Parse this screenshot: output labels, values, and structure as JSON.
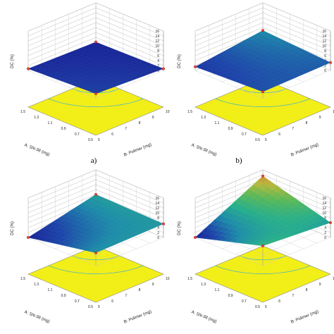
{
  "panel_labels": [
    "a)",
    "b)"
  ],
  "chart_data": [
    {
      "type": "surface",
      "panel": "a)",
      "zlabel": "DC (%)",
      "xlabel": "A: SN-38 (mg)",
      "ylabel": "B: Polimer (mg)",
      "zlim": [
        0,
        16
      ],
      "z_ticks": [
        "0",
        "2",
        "4",
        "6",
        "8",
        "10",
        "12",
        "14",
        "16"
      ],
      "x_ticks": [
        "0.5",
        "0.7",
        "0.9",
        "1.1",
        "1.3",
        "1.5"
      ],
      "y_ticks": [
        "5",
        "6",
        "7",
        "8",
        "9",
        "10"
      ],
      "surface_corners": {
        "xmin_ymin": 2.0,
        "xmax_ymin": 0.7,
        "xmin_ymax": 0.7,
        "xmax_ymax": 0.1
      },
      "colormap": "blue-green-red"
    },
    {
      "type": "surface",
      "panel": "b)",
      "zlabel": "DC (%)",
      "xlabel": "A: SN-38 (mg)",
      "ylabel": "B: Polimer (mg)",
      "zlim": [
        0,
        16
      ],
      "z_ticks": [
        "0",
        "2",
        "4",
        "6",
        "8",
        "10",
        "12",
        "14",
        "16"
      ],
      "x_ticks": [
        "0.5",
        "0.7",
        "0.9",
        "1.1",
        "1.3",
        "1.5"
      ],
      "y_ticks": [
        "5",
        "6",
        "7",
        "8",
        "9",
        "10"
      ],
      "surface_corners": {
        "xmin_ymin": 2.8,
        "xmax_ymin": 1.5,
        "xmin_ymax": 3.2,
        "xmax_ymax": 4.8
      },
      "colormap": "blue-green-red"
    },
    {
      "type": "surface",
      "panel": "",
      "zlabel": "DC (%)",
      "xlabel": "A: SN-38 (mg)",
      "ylabel": "B: Polimer (mg)",
      "zlim": [
        0,
        16
      ],
      "z_ticks": [
        "0",
        "2",
        "4",
        "6",
        "8",
        "10",
        "12",
        "14",
        "16"
      ],
      "x_ticks": [
        "0.5",
        "0.7",
        "0.9",
        "1.1",
        "1.3",
        "1.5"
      ],
      "y_ticks": [
        "5",
        "6",
        "7",
        "8",
        "9",
        "10"
      ],
      "surface_corners": {
        "xmin_ymin": 5.2,
        "xmax_ymin": 0.0,
        "xmin_ymax": 5.5,
        "xmax_ymax": 6.0
      },
      "colormap": "blue-green-red"
    },
    {
      "type": "surface",
      "panel": "",
      "zlabel": "DC (%)",
      "xlabel": "A: SN-38 (mg)",
      "ylabel": "B: Polimer (mg)",
      "zlim": [
        0,
        16
      ],
      "z_ticks": [
        "0",
        "2",
        "4",
        "6",
        "8",
        "10",
        "12",
        "14",
        "16"
      ],
      "x_ticks": [
        "0.5",
        "0.7",
        "0.9",
        "1.1",
        "1.3",
        "1.5"
      ],
      "y_ticks": [
        "5",
        "6",
        "7",
        "8",
        "9",
        "10"
      ],
      "surface_corners": {
        "xmin_ymin": 8.0,
        "xmax_ymin": 0.0,
        "xmin_ymax": 6.0,
        "xmax_ymax": 13.5
      },
      "colormap": "blue-green-red"
    }
  ]
}
